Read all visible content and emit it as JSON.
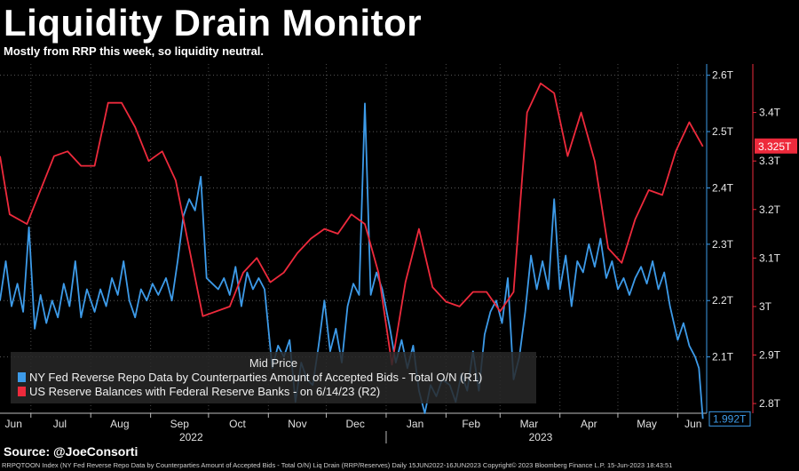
{
  "header": {
    "title": "Liquidity Drain Monitor",
    "subtitle": "Mostly from RRP this week, so liquidity neutral."
  },
  "legend": {
    "title": "Mid Price",
    "items": [
      {
        "label": "NY Fed Reverse Repo Data by Counterparties Amount of Accepted Bids - Total O/N  (R1)",
        "color": "#3d9be9"
      },
      {
        "label": "US Reserve Balances with Federal Reserve Banks -  on 6/14/23  (R2)",
        "color": "#ee2a3c"
      }
    ]
  },
  "source": "Source: @JoeConsorti",
  "footer": "RRPQTOON Index (NY Fed Reverse Repo Data by Counterparties Amount of Accepted Bids - Total O/N) Liq Drain (RRP/Reserves)  Daily 15JUN2022-16JUN2023  Copyright© 2023 Bloomberg Finance L.P.   15-Jun-2023 18:43:51",
  "chart_data": {
    "type": "line",
    "title": "Liquidity Drain Monitor",
    "x_labels": [
      "Jun",
      "Jul",
      "Aug",
      "Sep",
      "Oct",
      "Nov",
      "Dec",
      "Jan",
      "Feb",
      "Mar",
      "Apr",
      "May",
      "Jun"
    ],
    "year_labels": [
      "2022",
      "2023"
    ],
    "axis_r1": {
      "ticks": [
        "2.1T",
        "2.2T",
        "2.3T",
        "2.4T",
        "2.5T",
        "2.6T"
      ],
      "ylim": [
        2.0,
        2.62
      ],
      "color": "#3d9be9",
      "last_value_label": "1.992T"
    },
    "axis_r2": {
      "ticks": [
        "2.8T",
        "2.9T",
        "3T",
        "3.1T",
        "3.2T",
        "3.3T",
        "3.4T"
      ],
      "ylim": [
        2.78,
        3.5
      ],
      "color": "#ee2a3c",
      "last_value_label": "3.325T"
    },
    "grid": true,
    "series": [
      {
        "name": "NY Fed Reverse Repo Data by Counterparties Amount of Accepted Bids - Total O/N  (R1)",
        "axis": "R1",
        "color": "#3d9be9",
        "points": [
          [
            "2022-06-15",
            2.2
          ],
          [
            "2022-06-18",
            2.27
          ],
          [
            "2022-06-21",
            2.19
          ],
          [
            "2022-06-24",
            2.23
          ],
          [
            "2022-06-27",
            2.18
          ],
          [
            "2022-06-30",
            2.33
          ],
          [
            "2022-07-03",
            2.15
          ],
          [
            "2022-07-06",
            2.21
          ],
          [
            "2022-07-09",
            2.16
          ],
          [
            "2022-07-12",
            2.2
          ],
          [
            "2022-07-15",
            2.17
          ],
          [
            "2022-07-18",
            2.23
          ],
          [
            "2022-07-21",
            2.19
          ],
          [
            "2022-07-24",
            2.27
          ],
          [
            "2022-07-27",
            2.17
          ],
          [
            "2022-07-30",
            2.22
          ],
          [
            "2022-08-03",
            2.18
          ],
          [
            "2022-08-06",
            2.22
          ],
          [
            "2022-08-09",
            2.19
          ],
          [
            "2022-08-12",
            2.24
          ],
          [
            "2022-08-15",
            2.21
          ],
          [
            "2022-08-18",
            2.27
          ],
          [
            "2022-08-21",
            2.2
          ],
          [
            "2022-08-24",
            2.17
          ],
          [
            "2022-08-27",
            2.22
          ],
          [
            "2022-08-30",
            2.2
          ],
          [
            "2022-09-02",
            2.23
          ],
          [
            "2022-09-05",
            2.21
          ],
          [
            "2022-09-09",
            2.24
          ],
          [
            "2022-09-12",
            2.2
          ],
          [
            "2022-09-15",
            2.27
          ],
          [
            "2022-09-18",
            2.35
          ],
          [
            "2022-09-21",
            2.38
          ],
          [
            "2022-09-24",
            2.36
          ],
          [
            "2022-09-27",
            2.42
          ],
          [
            "2022-09-30",
            2.24
          ],
          [
            "2022-10-03",
            2.23
          ],
          [
            "2022-10-06",
            2.22
          ],
          [
            "2022-10-09",
            2.24
          ],
          [
            "2022-10-12",
            2.21
          ],
          [
            "2022-10-15",
            2.26
          ],
          [
            "2022-10-18",
            2.19
          ],
          [
            "2022-10-21",
            2.25
          ],
          [
            "2022-10-24",
            2.22
          ],
          [
            "2022-10-27",
            2.24
          ],
          [
            "2022-10-30",
            2.22
          ],
          [
            "2022-11-03",
            2.08
          ],
          [
            "2022-11-06",
            2.12
          ],
          [
            "2022-11-09",
            2.1
          ],
          [
            "2022-11-12",
            2.13
          ],
          [
            "2022-11-15",
            2.02
          ],
          [
            "2022-11-18",
            2.09
          ],
          [
            "2022-11-21",
            2.06
          ],
          [
            "2022-11-24",
            2.05
          ],
          [
            "2022-11-27",
            2.12
          ],
          [
            "2022-11-30",
            2.2
          ],
          [
            "2022-12-03",
            2.11
          ],
          [
            "2022-12-06",
            2.15
          ],
          [
            "2022-12-09",
            2.09
          ],
          [
            "2022-12-12",
            2.19
          ],
          [
            "2022-12-15",
            2.23
          ],
          [
            "2022-12-18",
            2.21
          ],
          [
            "2022-12-21",
            2.55
          ],
          [
            "2022-12-24",
            2.21
          ],
          [
            "2022-12-27",
            2.25
          ],
          [
            "2022-12-30",
            2.22
          ],
          [
            "2023-01-03",
            2.15
          ],
          [
            "2023-01-06",
            2.09
          ],
          [
            "2023-01-09",
            2.13
          ],
          [
            "2023-01-12",
            2.08
          ],
          [
            "2023-01-15",
            2.12
          ],
          [
            "2023-01-18",
            2.04
          ],
          [
            "2023-01-21",
            2.0
          ],
          [
            "2023-01-24",
            2.05
          ],
          [
            "2023-01-27",
            2.03
          ],
          [
            "2023-01-30",
            2.06
          ],
          [
            "2023-02-03",
            2.05
          ],
          [
            "2023-02-06",
            2.02
          ],
          [
            "2023-02-09",
            2.07
          ],
          [
            "2023-02-12",
            2.04
          ],
          [
            "2023-02-15",
            2.11
          ],
          [
            "2023-02-18",
            2.04
          ],
          [
            "2023-02-21",
            2.14
          ],
          [
            "2023-02-24",
            2.18
          ],
          [
            "2023-02-27",
            2.2
          ],
          [
            "2023-03-02",
            2.16
          ],
          [
            "2023-03-05",
            2.24
          ],
          [
            "2023-03-08",
            2.06
          ],
          [
            "2023-03-11",
            2.1
          ],
          [
            "2023-03-14",
            2.18
          ],
          [
            "2023-03-17",
            2.28
          ],
          [
            "2023-03-20",
            2.22
          ],
          [
            "2023-03-23",
            2.27
          ],
          [
            "2023-03-26",
            2.22
          ],
          [
            "2023-03-29",
            2.38
          ],
          [
            "2023-04-01",
            2.22
          ],
          [
            "2023-04-04",
            2.28
          ],
          [
            "2023-04-07",
            2.19
          ],
          [
            "2023-04-10",
            2.27
          ],
          [
            "2023-04-13",
            2.25
          ],
          [
            "2023-04-16",
            2.3
          ],
          [
            "2023-04-19",
            2.26
          ],
          [
            "2023-04-22",
            2.31
          ],
          [
            "2023-04-25",
            2.24
          ],
          [
            "2023-04-28",
            2.27
          ],
          [
            "2023-05-01",
            2.22
          ],
          [
            "2023-05-04",
            2.24
          ],
          [
            "2023-05-07",
            2.21
          ],
          [
            "2023-05-10",
            2.24
          ],
          [
            "2023-05-13",
            2.26
          ],
          [
            "2023-05-16",
            2.23
          ],
          [
            "2023-05-19",
            2.27
          ],
          [
            "2023-05-22",
            2.22
          ],
          [
            "2023-05-25",
            2.25
          ],
          [
            "2023-05-28",
            2.19
          ],
          [
            "2023-06-01",
            2.13
          ],
          [
            "2023-06-04",
            2.16
          ],
          [
            "2023-06-07",
            2.12
          ],
          [
            "2023-06-10",
            2.1
          ],
          [
            "2023-06-12",
            2.08
          ],
          [
            "2023-06-14",
            1.99
          ]
        ]
      },
      {
        "name": "US Reserve Balances with Federal Reserve Banks -  on 6/14/23  (R2)",
        "axis": "R2",
        "color": "#ee2a3c",
        "points": [
          [
            "2022-06-15",
            3.31
          ],
          [
            "2022-06-20",
            3.19
          ],
          [
            "2022-06-29",
            3.17
          ],
          [
            "2022-07-13",
            3.31
          ],
          [
            "2022-07-20",
            3.32
          ],
          [
            "2022-07-27",
            3.29
          ],
          [
            "2022-08-03",
            3.29
          ],
          [
            "2022-08-10",
            3.42
          ],
          [
            "2022-08-17",
            3.42
          ],
          [
            "2022-08-24",
            3.37
          ],
          [
            "2022-08-31",
            3.3
          ],
          [
            "2022-09-07",
            3.32
          ],
          [
            "2022-09-14",
            3.26
          ],
          [
            "2022-09-28",
            2.98
          ],
          [
            "2022-10-12",
            3.0
          ],
          [
            "2022-10-19",
            3.07
          ],
          [
            "2022-10-26",
            3.1
          ],
          [
            "2022-11-02",
            3.05
          ],
          [
            "2022-11-09",
            3.07
          ],
          [
            "2022-11-16",
            3.11
          ],
          [
            "2022-11-23",
            3.14
          ],
          [
            "2022-11-30",
            3.16
          ],
          [
            "2022-12-07",
            3.15
          ],
          [
            "2022-12-14",
            3.19
          ],
          [
            "2022-12-21",
            3.17
          ],
          [
            "2022-12-28",
            3.07
          ],
          [
            "2023-01-04",
            2.88
          ],
          [
            "2023-01-11",
            3.05
          ],
          [
            "2023-01-18",
            3.16
          ],
          [
            "2023-01-25",
            3.04
          ],
          [
            "2023-02-01",
            3.01
          ],
          [
            "2023-02-08",
            3.0
          ],
          [
            "2023-02-15",
            3.03
          ],
          [
            "2023-02-22",
            3.03
          ],
          [
            "2023-03-01",
            2.99
          ],
          [
            "2023-03-08",
            3.03
          ],
          [
            "2023-03-15",
            3.4
          ],
          [
            "2023-03-22",
            3.46
          ],
          [
            "2023-03-29",
            3.44
          ],
          [
            "2023-04-05",
            3.31
          ],
          [
            "2023-04-12",
            3.4
          ],
          [
            "2023-04-19",
            3.3
          ],
          [
            "2023-04-26",
            3.12
          ],
          [
            "2023-05-03",
            3.09
          ],
          [
            "2023-05-10",
            3.18
          ],
          [
            "2023-05-17",
            3.24
          ],
          [
            "2023-05-24",
            3.23
          ],
          [
            "2023-05-31",
            3.32
          ],
          [
            "2023-06-07",
            3.38
          ],
          [
            "2023-06-14",
            3.33
          ]
        ]
      }
    ]
  }
}
